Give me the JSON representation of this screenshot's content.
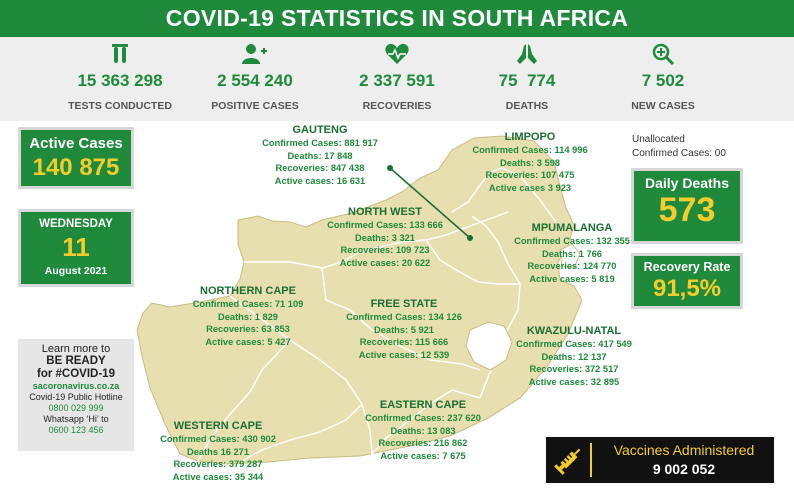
{
  "header": {
    "title": "COVID-19 STATISTICS IN SOUTH AFRICA"
  },
  "stats": [
    {
      "icon": "test-tubes-icon",
      "value": "15 363 298",
      "label": "TESTS CONDUCTED"
    },
    {
      "icon": "add-person-icon",
      "value": "2 554 240",
      "label": "POSITIVE CASES"
    },
    {
      "icon": "heart-pulse-icon",
      "value": "2 337 591",
      "label": "RECOVERIES"
    },
    {
      "icon": "praying-hands-icon",
      "value": "75  774",
      "label": "DEATHS"
    },
    {
      "icon": "magnifier-plus-icon",
      "value": "7 502",
      "label": "NEW CASES"
    }
  ],
  "active": {
    "label": "Active Cases",
    "value": "140 875"
  },
  "date": {
    "day": "WEDNESDAY",
    "num": "11",
    "month": "August 2021"
  },
  "unallocated": {
    "line1": "Unallocated",
    "line2": "Confirmed Cases: 00"
  },
  "daily_deaths": {
    "label": "Daily Deaths",
    "value": "573"
  },
  "recovery_rate": {
    "label": "Recovery Rate",
    "value": "91,5%"
  },
  "learn": {
    "l1": "Learn more to",
    "l2": "BE READY",
    "l3": "for #COVID-19",
    "site": "sacoronavirus.co.za",
    "hotline_label": "Covid-19 Public Hotline",
    "hotline": "0800 029 999",
    "whatsapp_label": "Whatsapp ‘Hi’ to",
    "whatsapp": "0600 123 456"
  },
  "vaccines": {
    "label": "Vaccines Administered",
    "value": "9 002 052"
  },
  "regions": {
    "gauteng": {
      "name": "GAUTENG",
      "lines": [
        "Confirmed Cases: 881 917",
        "Deaths: 17 848",
        "Recoveries: 847 438",
        "Active cases: 16 631"
      ]
    },
    "limpopo": {
      "name": "LIMPOPO",
      "lines": [
        "Confirmed Cases: 114 996",
        "Deaths: 3 598",
        "Recoveries: 107 475",
        "Active cases 3 923"
      ]
    },
    "northwest": {
      "name": "NORTH WEST",
      "lines": [
        "Confirmed Cases: 133 666",
        "Deaths: 3 321",
        "Recoveries: 109 723",
        "Active cases: 20 622"
      ]
    },
    "mpumalanga": {
      "name": "MPUMALANGA",
      "lines": [
        "Confirmed Cases: 132 355",
        "Deaths:  1 766",
        "Recoveries: 124 770",
        "Active cases: 5 819"
      ]
    },
    "northerncape": {
      "name": "NORTHERN CAPE",
      "lines": [
        "Confirmed Cases: 71 109",
        "Deaths: 1 829",
        "Recoveries: 63 853",
        "Active cases: 5 427"
      ]
    },
    "freestate": {
      "name": "FREE STATE",
      "lines": [
        "Confirmed Cases: 134 126",
        "Deaths: 5 921",
        "Recoveries:  115 666",
        "Active cases: 12 539"
      ]
    },
    "kzn": {
      "name": "KWAZULU-NATAL",
      "lines": [
        "Confirmed Cases: 417 549",
        "Deaths: 12 137",
        "Recoveries: 372 517",
        "Active cases: 32 895"
      ]
    },
    "westerncape": {
      "name": "WESTERN CAPE",
      "lines": [
        "Confirmed Cases: 430 902",
        "Deaths 16 271",
        "Recoveries: 379 287",
        "Active cases: 35 344"
      ]
    },
    "easterncape": {
      "name": "EASTERN CAPE",
      "lines": [
        "Confirmed Cases: 237 620",
        "Deaths: 13 083",
        "Recoveries: 216 862",
        "Active cases: 7 675"
      ]
    }
  },
  "colors": {
    "green": "#1f8a3c",
    "yellow": "#f4cc2c",
    "map": "#e8dfb0"
  }
}
